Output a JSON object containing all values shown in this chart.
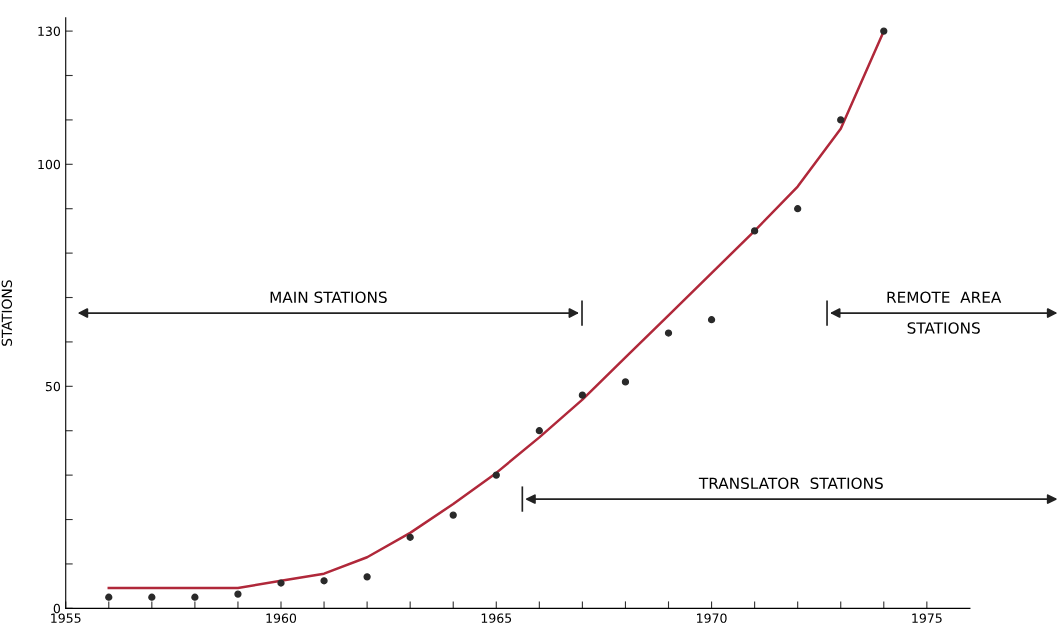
{
  "chart_data": {
    "type": "scatter",
    "ylabel": "STATIONS",
    "xlim": [
      1955,
      1976
    ],
    "ylim": [
      0,
      133
    ],
    "xticks": [
      1955,
      {
        "value": 1956,
        "label": null
      },
      {
        "value": 1957,
        "label": null
      },
      {
        "value": 1958,
        "label": null
      },
      {
        "value": 1959,
        "label": null
      },
      1960,
      {
        "value": 1961,
        "label": null
      },
      {
        "value": 1962,
        "label": null
      },
      {
        "value": 1963,
        "label": null
      },
      {
        "value": 1964,
        "label": null
      },
      1965,
      {
        "value": 1966,
        "label": null
      },
      {
        "value": 1967,
        "label": null
      },
      {
        "value": 1968,
        "label": null
      },
      {
        "value": 1969,
        "label": null
      },
      1970,
      {
        "value": 1971,
        "label": null
      },
      {
        "value": 1972,
        "label": null
      },
      {
        "value": 1973,
        "label": null
      },
      {
        "value": 1974,
        "label": null
      },
      1975
    ],
    "yticks": [
      0,
      {
        "value": 10,
        "label": null
      },
      {
        "value": 20,
        "label": null
      },
      {
        "value": 30,
        "label": null
      },
      {
        "value": 40,
        "label": null
      },
      50,
      {
        "value": 60,
        "label": null
      },
      {
        "value": 70,
        "label": null
      },
      {
        "value": 80,
        "label": null
      },
      {
        "value": 90,
        "label": null
      },
      100,
      {
        "value": 110,
        "label": null
      },
      {
        "value": 120,
        "label": null
      },
      130
    ],
    "grid": false,
    "series": [
      {
        "marker": "circle",
        "color": "#2a2a2a",
        "x": [
          1956,
          1957,
          1958,
          1959,
          1960,
          1961,
          1962,
          1963,
          1964,
          1965,
          1966,
          1967,
          1968,
          1969,
          1970,
          1971,
          1972,
          1973,
          1974
        ],
        "values": [
          2.5,
          2.5,
          2.5,
          3.2,
          5.7,
          6.2,
          7.1,
          16,
          21,
          30,
          40,
          48,
          51,
          62,
          65,
          85,
          90,
          110,
          130
        ]
      },
      {
        "type": "line",
        "color": "#b0283a",
        "line_style": "solid",
        "x": [
          1956,
          1957,
          1958,
          1959,
          1960,
          1961,
          1962,
          1963,
          1964,
          1965,
          1966,
          1967,
          1968,
          1969,
          1970,
          1971,
          1972,
          1973,
          1974
        ],
        "values": [
          4.6,
          4.6,
          4.6,
          4.6,
          6.2,
          7.8,
          11.5,
          17,
          23.5,
          30.5,
          38.5,
          47,
          56.5,
          66,
          75.5,
          85,
          95,
          108,
          130
        ]
      }
    ],
    "annotations": [
      "MAIN STATIONS",
      "TRANSLATOR  STATIONS",
      "REMOTE  AREA\nSTATIONS"
    ]
  }
}
